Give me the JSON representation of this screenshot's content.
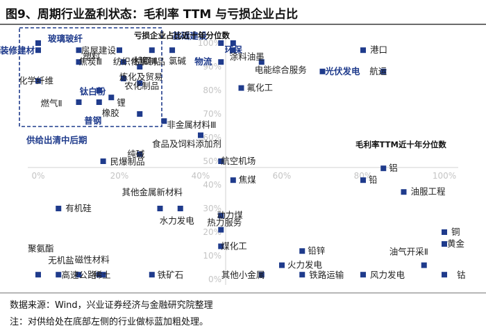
{
  "title": "图9、周期行业盈利状态：毛利率 TTM 与亏损企业占比",
  "source": "数据来源：Wind，兴业证券经济与金融研究院整理",
  "note": "注：对供给处在底部左侧的行业做标蓝加粗处理。",
  "colors": {
    "marker": "#1f3b8c",
    "highlight": "#1f3b8c",
    "tick": "#c4c4c4",
    "axis": "#d0d0d0"
  },
  "chart_data": {
    "type": "scatter",
    "xlabel": "毛利率TTM近十年分位数",
    "ylabel": "亏损企业占比近十年分位数",
    "xlim": [
      0,
      100
    ],
    "ylim": [
      0,
      100
    ],
    "x_ticks": [
      "0%",
      "20%",
      "40%",
      "60%",
      "80%",
      "100%"
    ],
    "y_ticks": [
      "0%",
      "10%",
      "20%",
      "30%",
      "40%",
      "50%",
      "60%",
      "70%",
      "80%",
      "90%",
      "100%"
    ],
    "grid": false,
    "annotation": "供给出清中后期",
    "points": [
      {
        "name": "玻璃玻纤",
        "x": 0,
        "y": 100,
        "bold": true
      },
      {
        "name": "塑料",
        "x": 10,
        "y": 97,
        "bold": false
      },
      {
        "name": "房屋建设",
        "x": 20,
        "y": 97,
        "bold": false
      },
      {
        "name": "水泥",
        "x": 28,
        "y": 97,
        "bold": false
      },
      {
        "name": "氯碱",
        "x": 33,
        "y": 97,
        "bold": false
      },
      {
        "name": "装修建材",
        "x": 0,
        "y": 97,
        "bold": true
      },
      {
        "name": "焦炭Ⅲ",
        "x": 10,
        "y": 92,
        "bold": false
      },
      {
        "name": "纺织化学制品",
        "x": 21,
        "y": 92,
        "bold": false
      },
      {
        "name": "特钢Ⅲ",
        "x": 25,
        "y": 90,
        "bold": false
      },
      {
        "name": "炼化及贸易",
        "x": 21,
        "y": 85,
        "bold": false
      },
      {
        "name": "化学纤维",
        "x": 0,
        "y": 84,
        "bold": false
      },
      {
        "name": "农化制品",
        "x": 25,
        "y": 83,
        "bold": false
      },
      {
        "name": "钛白粉",
        "x": 15,
        "y": 80,
        "bold": true
      },
      {
        "name": "锂",
        "x": 18,
        "y": 77,
        "bold": false
      },
      {
        "name": "燃气Ⅱ",
        "x": 10,
        "y": 75,
        "bold": false
      },
      {
        "name": "橡胶",
        "x": 15,
        "y": 75,
        "bold": false
      },
      {
        "name": "普钢",
        "x": 25,
        "y": 70,
        "bold": true
      },
      {
        "name": "非金属材料Ⅲ",
        "x": 31,
        "y": 67,
        "bold": false
      },
      {
        "name": "食品及饲料添加剂",
        "x": 40,
        "y": 61,
        "bold": false
      },
      {
        "name": "纯碱",
        "x": 25,
        "y": 53,
        "bold": false
      },
      {
        "name": "民爆制品",
        "x": 16,
        "y": 50,
        "bold": false
      },
      {
        "name": "航空机场",
        "x": 45,
        "y": 50,
        "bold": false
      },
      {
        "name": "焦煤",
        "x": 48,
        "y": 42,
        "bold": false
      },
      {
        "name": "基础建设",
        "x": 45,
        "y": 100,
        "bold": true
      },
      {
        "name": "环保",
        "x": 48,
        "y": 100,
        "bold": true
      },
      {
        "name": "物流",
        "x": 45,
        "y": 92,
        "bold": true
      },
      {
        "name": "涂料油墨",
        "x": 48,
        "y": 97,
        "bold": false
      },
      {
        "name": "电能综合服务",
        "x": 55,
        "y": 92,
        "bold": false
      },
      {
        "name": "氟化工",
        "x": 50,
        "y": 81,
        "bold": false
      },
      {
        "name": "港口",
        "x": 80,
        "y": 97,
        "bold": false
      },
      {
        "name": "光伏发电",
        "x": 70,
        "y": 88,
        "bold": true
      },
      {
        "name": "航运",
        "x": 85,
        "y": 88,
        "bold": false
      },
      {
        "name": "铝",
        "x": 85,
        "y": 47,
        "bold": false
      },
      {
        "name": "铅",
        "x": 80,
        "y": 42,
        "bold": false
      },
      {
        "name": "油服工程",
        "x": 90,
        "y": 37,
        "bold": false
      },
      {
        "name": "其他金属新材料",
        "x": 30,
        "y": 30,
        "bold": false
      },
      {
        "name": "有机硅",
        "x": 5,
        "y": 30,
        "bold": false
      },
      {
        "name": "动力煤",
        "x": 45,
        "y": 27,
        "bold": false
      },
      {
        "name": "水力发电",
        "x": 35,
        "y": 30,
        "bold": false
      },
      {
        "name": "热力服务",
        "x": 45,
        "y": 21,
        "bold": false
      },
      {
        "name": "煤化工",
        "x": 45,
        "y": 14,
        "bold": false
      },
      {
        "name": "铅锌",
        "x": 65,
        "y": 12,
        "bold": false
      },
      {
        "name": "火力发电",
        "x": 60,
        "y": 6,
        "bold": false
      },
      {
        "name": "铜",
        "x": 100,
        "y": 20,
        "bold": false
      },
      {
        "name": "黄金",
        "x": 100,
        "y": 15,
        "bold": false
      },
      {
        "name": "油气开采Ⅱ",
        "x": 95,
        "y": 6,
        "bold": false
      },
      {
        "name": "聚氨酯",
        "x": 0,
        "y": 2,
        "bold": false
      },
      {
        "name": "无机盐",
        "x": 5,
        "y": 2,
        "bold": false
      },
      {
        "name": "高速公路",
        "x": 10,
        "y": 2,
        "bold": false
      },
      {
        "name": "磁性材料",
        "x": 15,
        "y": 2,
        "bold": false
      },
      {
        "name": "稀土",
        "x": 16,
        "y": 2,
        "bold": false
      },
      {
        "name": "铁矿石",
        "x": 28,
        "y": 2,
        "bold": false
      },
      {
        "name": "其他小金属",
        "x": 55,
        "y": 2,
        "bold": false
      },
      {
        "name": "铁路运输",
        "x": 65,
        "y": 2,
        "bold": false
      },
      {
        "name": "风力发电",
        "x": 80,
        "y": 2,
        "bold": false
      },
      {
        "name": "钴",
        "x": 100,
        "y": 2,
        "bold": false
      }
    ]
  }
}
